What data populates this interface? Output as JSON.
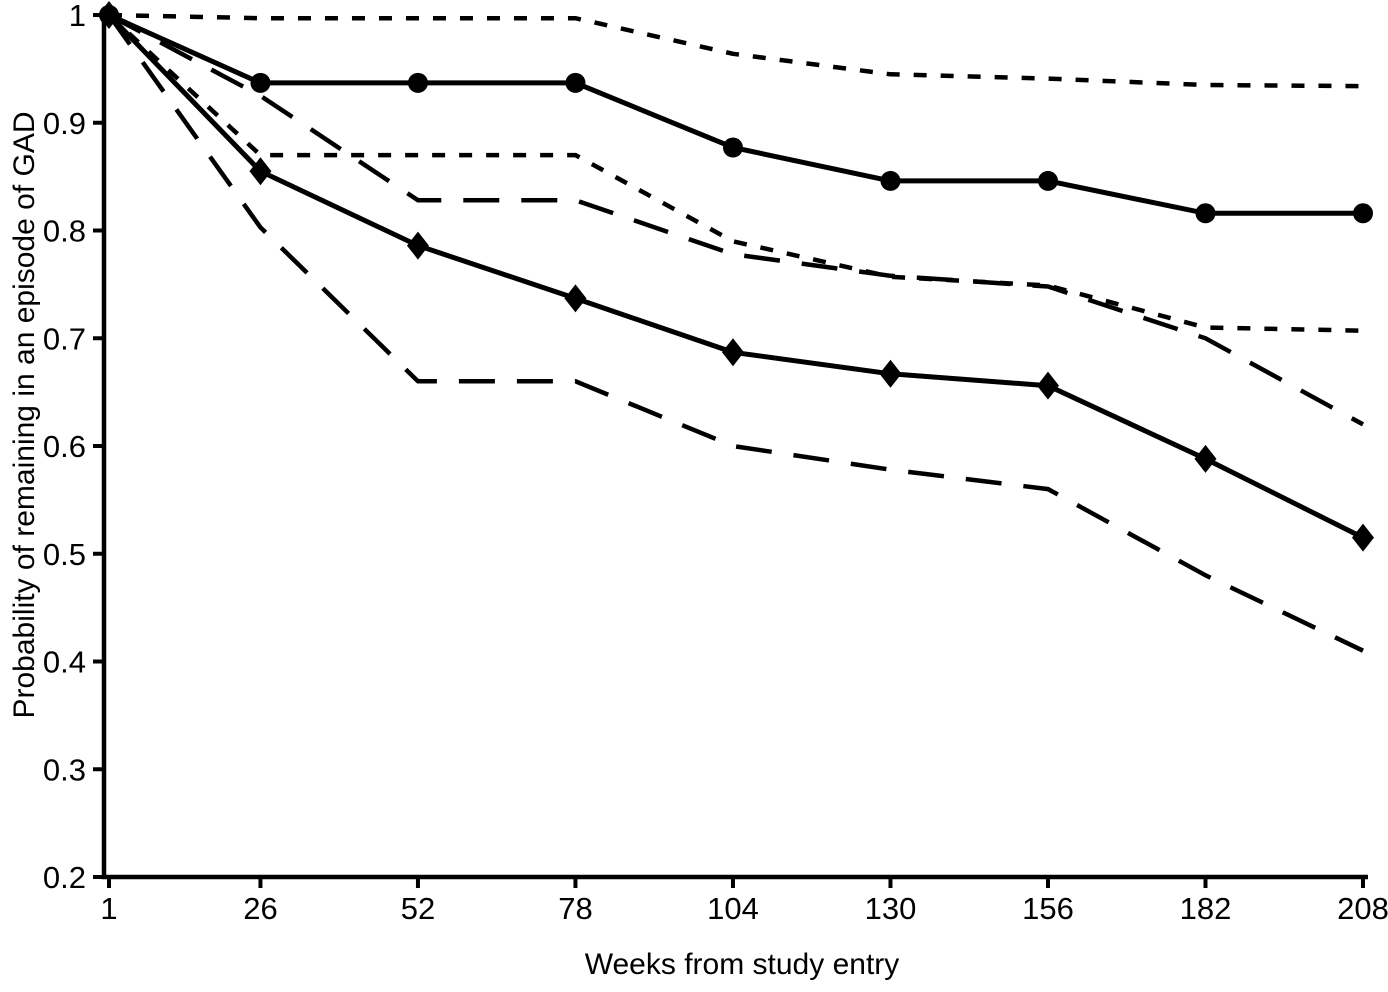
{
  "figure": {
    "background_color": "#ffffff",
    "ink_color": "#000000"
  },
  "chart_data": {
    "type": "line",
    "title": "",
    "xlabel": "Weeks from study entry",
    "ylabel": "Probability of remaining in an episode of GAD",
    "xlim": [
      1,
      208
    ],
    "ylim": [
      0.2,
      1.0
    ],
    "grid": false,
    "legend": "none",
    "x": [
      1,
      26,
      52,
      78,
      104,
      130,
      156,
      182,
      208
    ],
    "xtick_labels": [
      "1",
      "26",
      "52",
      "78",
      "104",
      "130",
      "156",
      "182",
      "208"
    ],
    "yticks": [
      0.2,
      0.3,
      0.4,
      0.5,
      0.6,
      0.7,
      0.8,
      0.9,
      1
    ],
    "ytick_labels": [
      "0.2",
      "0.3",
      "0.4",
      "0.5",
      "0.6",
      "0.7",
      "0.8",
      "0.9",
      "1"
    ],
    "series": [
      {
        "name": "circle-group-upper-95ci",
        "style": "short-dash",
        "marker": "none",
        "values": [
          1.0,
          0.997,
          0.997,
          0.997,
          0.964,
          0.945,
          0.941,
          0.935,
          0.934
        ]
      },
      {
        "name": "circle-group-survival",
        "style": "solid",
        "marker": "circle",
        "values": [
          1.0,
          0.937,
          0.937,
          0.937,
          0.877,
          0.846,
          0.846,
          0.816,
          0.816
        ]
      },
      {
        "name": "circle-group-lower-95ci",
        "style": "short-dash",
        "marker": "none",
        "values": [
          1.0,
          0.87,
          0.87,
          0.87,
          0.79,
          0.757,
          0.749,
          0.71,
          0.707
        ]
      },
      {
        "name": "diamond-group-upper-95ci",
        "style": "long-dash",
        "marker": "none",
        "values": [
          1.0,
          0.925,
          0.828,
          0.828,
          0.778,
          0.758,
          0.748,
          0.7,
          0.62
        ]
      },
      {
        "name": "diamond-group-survival",
        "style": "solid",
        "marker": "diamond",
        "values": [
          1.0,
          0.855,
          0.786,
          0.737,
          0.687,
          0.667,
          0.656,
          0.588,
          0.515
        ]
      },
      {
        "name": "diamond-group-lower-95ci",
        "style": "long-dash",
        "marker": "none",
        "values": [
          1.0,
          0.803,
          0.66,
          0.66,
          0.6,
          0.578,
          0.56,
          0.48,
          0.41
        ]
      }
    ]
  }
}
